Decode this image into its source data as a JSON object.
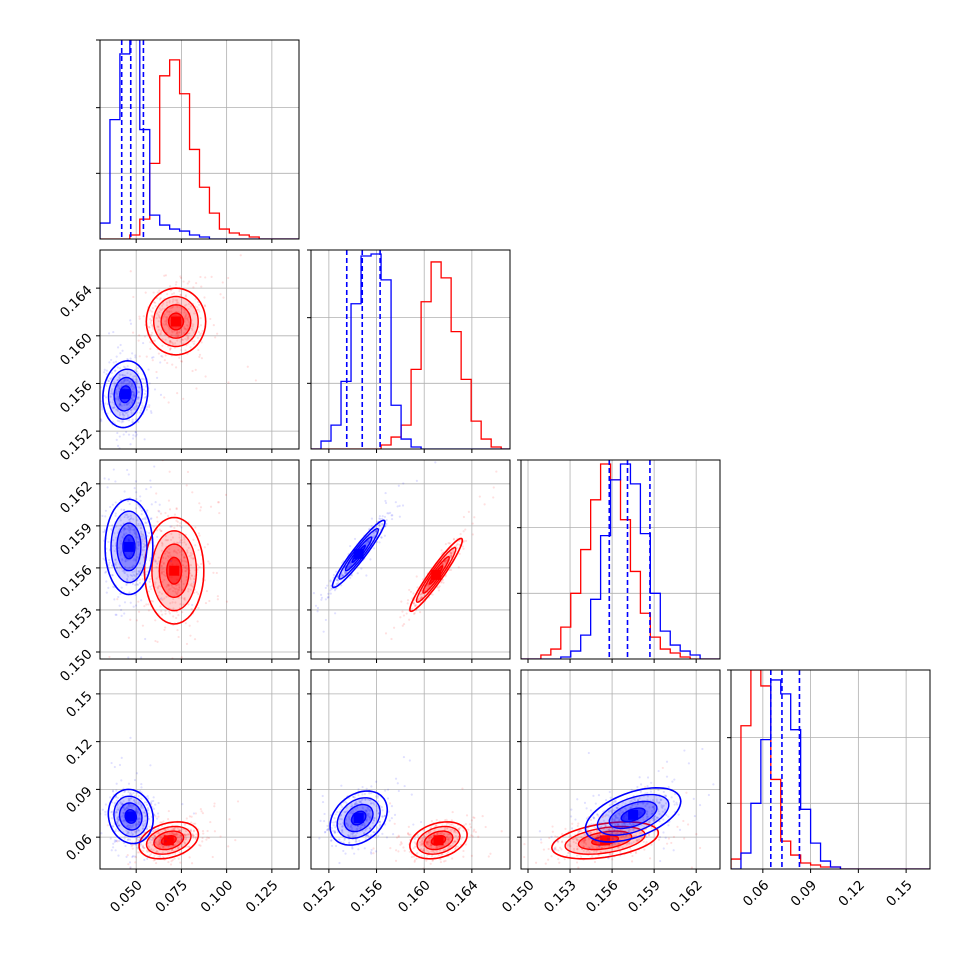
{
  "chart_data": {
    "type": "corner",
    "parameters": 4,
    "grid": true,
    "colors": {
      "blue": "#0000ff",
      "red": "#ff0000"
    },
    "series": [
      {
        "color": "#0000ff",
        "quantiles_param1": [
          0.042,
          0.047,
          0.054
        ]
      },
      {
        "color": "#ff0000"
      }
    ],
    "axes": [
      {
        "range": [
          0.03,
          0.14
        ],
        "ticks": [
          0.05,
          0.075,
          0.1,
          0.125
        ],
        "tick_labels": [
          "0.050",
          "0.075",
          "0.100",
          "0.125"
        ]
      },
      {
        "range": [
          0.1505,
          0.1672
        ],
        "ticks": [
          0.152,
          0.156,
          0.16,
          0.164
        ],
        "tick_labels": [
          "0.152",
          "0.156",
          "0.160",
          "0.164"
        ]
      },
      {
        "range": [
          0.1495,
          0.1637
        ],
        "ticks": [
          0.15,
          0.153,
          0.156,
          0.159,
          0.162
        ],
        "tick_labels": [
          "0.150",
          "0.153",
          "0.156",
          "0.159",
          "0.162"
        ]
      },
      {
        "range": [
          0.04,
          0.165
        ],
        "ticks": [
          0.06,
          0.09,
          0.12,
          0.15
        ],
        "tick_labels": [
          "0.06",
          "0.09",
          "0.12",
          "0.15"
        ]
      }
    ],
    "histograms": [
      {
        "param": 1,
        "quantiles": {
          "blue": [
            0.042,
            0.047,
            0.054
          ]
        },
        "bins": [
          0.03,
          0.0355,
          0.041,
          0.0465,
          0.052,
          0.0575,
          0.063,
          0.0685,
          0.074,
          0.0795,
          0.085,
          0.0905,
          0.096,
          0.1015,
          0.107,
          0.1125,
          0.118,
          0.1235,
          0.129,
          0.1345,
          0.14
        ],
        "blue": [
          0.08,
          0.6,
          0.93,
          1.0,
          0.55,
          0.12,
          0.07,
          0.05,
          0.04,
          0.02,
          0.01,
          0.0,
          0.0,
          0.0,
          0.0,
          0.0,
          0.0,
          0.0,
          0.0,
          0.0
        ],
        "red": [
          0.0,
          0.0,
          0.0,
          0.02,
          0.1,
          0.38,
          0.82,
          0.9,
          0.73,
          0.45,
          0.26,
          0.13,
          0.05,
          0.03,
          0.02,
          0.01,
          0.0,
          0.0,
          0.0,
          0.0
        ]
      },
      {
        "param": 2,
        "quantiles": {
          "blue": [
            0.1535,
            0.1548,
            0.1563
          ]
        },
        "bins": [
          0.1505,
          0.15134,
          0.15218,
          0.15302,
          0.15386,
          0.1547,
          0.15554,
          0.15638,
          0.15722,
          0.15806,
          0.1589,
          0.15974,
          0.16058,
          0.16142,
          0.16226,
          0.1631,
          0.16394,
          0.16478,
          0.16562,
          0.16646,
          0.1673
        ],
        "blue": [
          0.0,
          0.04,
          0.12,
          0.34,
          0.73,
          0.97,
          0.98,
          0.85,
          0.22,
          0.05,
          0.01,
          0.0,
          0.0,
          0.0,
          0.0,
          0.0,
          0.0,
          0.0,
          0.0,
          0.0
        ],
        "red": [
          0.0,
          0.0,
          0.0,
          0.0,
          0.0,
          0.0,
          0.0,
          0.02,
          0.06,
          0.12,
          0.4,
          0.74,
          0.94,
          0.86,
          0.59,
          0.35,
          0.14,
          0.05,
          0.01,
          0.0
        ]
      },
      {
        "param": 3,
        "quantiles": {
          "blue": [
            0.1558,
            0.1571,
            0.1587
          ]
        },
        "bins": [
          0.1495,
          0.15021,
          0.15092,
          0.15163,
          0.15234,
          0.15305,
          0.15376,
          0.15447,
          0.15518,
          0.15589,
          0.1566,
          0.15731,
          0.15802,
          0.15873,
          0.15944,
          0.16015,
          0.16086,
          0.16157,
          0.16228,
          0.16299,
          0.1637
        ],
        "blue": [
          0.0,
          0.0,
          0.0,
          0.0,
          0.01,
          0.04,
          0.12,
          0.3,
          0.62,
          0.9,
          0.98,
          0.88,
          0.63,
          0.33,
          0.14,
          0.07,
          0.04,
          0.02,
          0.0,
          0.0
        ],
        "red": [
          0.0,
          0.0,
          0.02,
          0.05,
          0.16,
          0.33,
          0.55,
          0.8,
          0.98,
          0.9,
          0.7,
          0.44,
          0.23,
          0.11,
          0.05,
          0.03,
          0.01,
          0.0,
          0.0,
          0.0
        ]
      },
      {
        "param": 4,
        "quantiles": {
          "blue": [
            0.065,
            0.072,
            0.083
          ]
        },
        "bins": [
          0.04,
          0.04625,
          0.0525,
          0.05875,
          0.065,
          0.07125,
          0.0775,
          0.08375,
          0.09,
          0.09625,
          0.1025,
          0.10875,
          0.115,
          0.12125,
          0.1275,
          0.13375,
          0.14,
          0.14625,
          0.1525,
          0.15875,
          0.165
        ],
        "blue": [
          0.0,
          0.08,
          0.33,
          0.65,
          0.95,
          0.88,
          0.7,
          0.3,
          0.13,
          0.04,
          0.01,
          0.0,
          0.0,
          0.0,
          0.0,
          0.0,
          0.0,
          0.0,
          0.0,
          0.0
        ],
        "red": [
          0.05,
          0.72,
          1.0,
          0.92,
          0.45,
          0.14,
          0.07,
          0.03,
          0.02,
          0.01,
          0.01,
          0.0,
          0.0,
          0.0,
          0.0,
          0.0,
          0.0,
          0.0,
          0.0,
          0.0
        ]
      }
    ],
    "contours_2d": [
      {
        "row": 2,
        "col": 1,
        "blue": {
          "center": [
            0.044,
            0.1551
          ],
          "sigma": [
            0.0062,
            0.0014
          ],
          "rho": 0.1
        },
        "red": {
          "center": [
            0.072,
            0.1612
          ],
          "sigma": [
            0.0082,
            0.0014
          ],
          "rho": 0.0
        }
      },
      {
        "row": 3,
        "col": 1,
        "blue": {
          "center": [
            0.046,
            0.1575
          ],
          "sigma": [
            0.0066,
            0.0017
          ],
          "rho": 0.0
        },
        "red": {
          "center": [
            0.071,
            0.1558
          ],
          "sigma": [
            0.0082,
            0.0019
          ],
          "rho": 0.0
        }
      },
      {
        "row": 3,
        "col": 2,
        "blue": {
          "center": [
            0.1545,
            0.157
          ],
          "sigma": [
            0.0011,
            0.0012
          ],
          "rho": 0.95
        },
        "red": {
          "center": [
            0.161,
            0.1555
          ],
          "sigma": [
            0.0011,
            0.0013
          ],
          "rho": 0.95
        }
      },
      {
        "row": 4,
        "col": 1,
        "blue": {
          "center": [
            0.047,
            0.073
          ],
          "sigma": [
            0.0062,
            0.0085
          ],
          "rho": -0.1
        },
        "red": {
          "center": [
            0.068,
            0.058
          ],
          "sigma": [
            0.0082,
            0.0058
          ],
          "rho": 0.3
        }
      },
      {
        "row": 4,
        "col": 2,
        "blue": {
          "center": [
            0.1545,
            0.072
          ],
          "sigma": [
            0.0012,
            0.0085
          ],
          "rho": 0.3
        },
        "red": {
          "center": [
            0.1612,
            0.058
          ],
          "sigma": [
            0.0012,
            0.0058
          ],
          "rho": 0.3
        }
      },
      {
        "row": 4,
        "col": 3,
        "blue": {
          "center": [
            0.1575,
            0.074
          ],
          "sigma": [
            0.0017,
            0.0085
          ],
          "rho": 0.5
        },
        "red": {
          "center": [
            0.1555,
            0.058
          ],
          "sigma": [
            0.0019,
            0.0058
          ],
          "rho": 0.4
        }
      }
    ]
  }
}
